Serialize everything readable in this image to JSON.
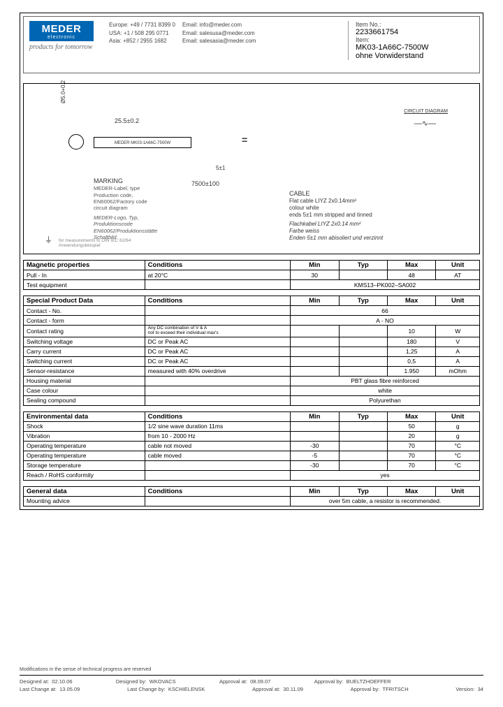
{
  "header": {
    "logo_main": "MEDER",
    "logo_sub": "electronic",
    "slogan": "products for tomorrow",
    "contacts_left": "Europe: +49 / 7731 8399 0\nUSA:     +1 / 508 295 0771\nAsia:     +852 / 2955 1682",
    "contacts_right": "Email: info@meder.com\nEmail: salesusa@meder.com\nEmail: salesasia@meder.com",
    "item_no_label": "Item No.:",
    "item_no": "2233661754",
    "item_label": "Item:",
    "item_name": "MK03-1A66C-7500W",
    "item_extra": "ohne Vorwiderstand"
  },
  "diagram": {
    "dim_v": "Ø5.0+0.2",
    "dim_h": "25.5±0.2",
    "dim_h2": "5±1",
    "dim_h3": " ",
    "part_label": "MEDER MK03-1A66C-7500W",
    "eq": "=",
    "num_label": "7500±100",
    "circuit_label": "CIRCUIT DIAGRAM",
    "circuit_sw": "—∿—",
    "marking_hdr": "MARKING",
    "marking_lines": "MEDER-Label, type\nProduction code,\nEN60062/Factory code\ncircuit diagram",
    "marking_ital": "MEDER-Logo, Typ,\nProduktionscode\nEN60062/Produktionsstätte\nSchaltbild",
    "cable_hdr": "CABLE",
    "cable_lines": "Flat cable LIYZ 2x0.14mm²\ncolour white\nends 5±1 mm stripped and tinned",
    "cable_ital": "Flachkabel LIYZ 2x0.14 mm²\nFarbe weiss\nEnden 5±1 mm abisoliert und verzinnt",
    "gnd_note": "for measurements to DIN IEC 62/64\nAnwendungsbeispiel",
    "gnd_sym": "⏚"
  },
  "tables": {
    "magnetic": {
      "title": "Magnetic properties",
      "cond_hdr": "Conditions",
      "cols": [
        "Min",
        "Typ",
        "Max",
        "Unit"
      ],
      "rows": [
        {
          "name": "Pull - In",
          "cond": "at 20°C",
          "min": "30",
          "typ": "",
          "max": "48",
          "unit": "AT"
        },
        {
          "name": "Test equipment",
          "cond": "",
          "span": "KMS13–PK002–SA002"
        }
      ]
    },
    "special": {
      "title": "Special Product Data",
      "cond_hdr": "Conditions",
      "cols": [
        "Min",
        "Typ",
        "Max",
        "Unit"
      ],
      "rows": [
        {
          "name": "Contact - No.",
          "cond": "",
          "span": "66"
        },
        {
          "name": "Contact - form",
          "cond": "",
          "span": "A - NO"
        },
        {
          "name": "Contact rating",
          "cond_small": "Any DC combination of V & A\nnot to exceed their individual max's",
          "min": "",
          "typ": "",
          "max": "10",
          "unit": "W"
        },
        {
          "name": "Switching voltage",
          "cond": "DC or Peak AC",
          "min": "",
          "typ": "",
          "max": "180",
          "unit": "V"
        },
        {
          "name": "Carry current",
          "cond": "DC or Peak AC",
          "min": "",
          "typ": "",
          "max": "1,25",
          "unit": "A"
        },
        {
          "name": "Switching current",
          "cond": "DC or Peak AC",
          "min": "",
          "typ": "",
          "max": "0,5",
          "unit": "A"
        },
        {
          "name": "Sensor-resistance",
          "cond": "measured with 40% overdrive",
          "min": "",
          "typ": "",
          "max": "1.950",
          "unit": "mOhm"
        },
        {
          "name": "Housing material",
          "cond": "",
          "span": "PBT glass fibre reinforced"
        },
        {
          "name": "Case colour",
          "cond": "",
          "span": "white"
        },
        {
          "name": "Sealing compound",
          "cond": "",
          "span": "Polyurethan"
        }
      ]
    },
    "environmental": {
      "title": "Environmental data",
      "cond_hdr": "Conditions",
      "cols": [
        "Min",
        "Typ",
        "Max",
        "Unit"
      ],
      "rows": [
        {
          "name": "Shock",
          "cond": "1/2 sine wave duration 11ms",
          "min": "",
          "typ": "",
          "max": "50",
          "unit": "g"
        },
        {
          "name": "Vibration",
          "cond": "from 10 - 2000 Hz",
          "min": "",
          "typ": "",
          "max": "20",
          "unit": "g"
        },
        {
          "name": "Operating temperature",
          "cond": "cable not moved",
          "min": "-30",
          "typ": "",
          "max": "70",
          "unit": "°C"
        },
        {
          "name": "Operating temperature",
          "cond": "cable moved",
          "min": "-5",
          "typ": "",
          "max": "70",
          "unit": "°C"
        },
        {
          "name": "Storage temperature",
          "cond": "",
          "min": "-30",
          "typ": "",
          "max": "70",
          "unit": "°C"
        },
        {
          "name": "Reach / RoHS conformity",
          "cond": "",
          "span": "yes"
        }
      ]
    },
    "general": {
      "title": "General data",
      "cond_hdr": "Conditions",
      "cols": [
        "Min",
        "Typ",
        "Max",
        "Unit"
      ],
      "rows": [
        {
          "name": "Mounting advice",
          "cond": "",
          "span": "over 5m cable, a resistor is recommended."
        }
      ]
    }
  },
  "footer": {
    "mod_note": "Modifications in the sense of technical progress are reserved",
    "r1": {
      "a": "Designed at:",
      "av": "02.10.06",
      "b": "Designed by:",
      "bv": "WKOVACS",
      "c": "Approval at:",
      "cv": "08.09.07",
      "d": "Approval by:",
      "dv": "BUELTZHOEFFER"
    },
    "r2": {
      "a": "Last Change at:",
      "av": "13.05.09",
      "b": "Last Change by:",
      "bv": "KSCHIELENSK",
      "c": "Approval at:",
      "cv": "30.11.09",
      "d": "Approval by:",
      "dv": "TFRITSCH",
      "e": "Version:",
      "ev": "34"
    }
  },
  "colors": {
    "brand": "#0066b3",
    "border": "#000000",
    "muted": "#666666"
  }
}
